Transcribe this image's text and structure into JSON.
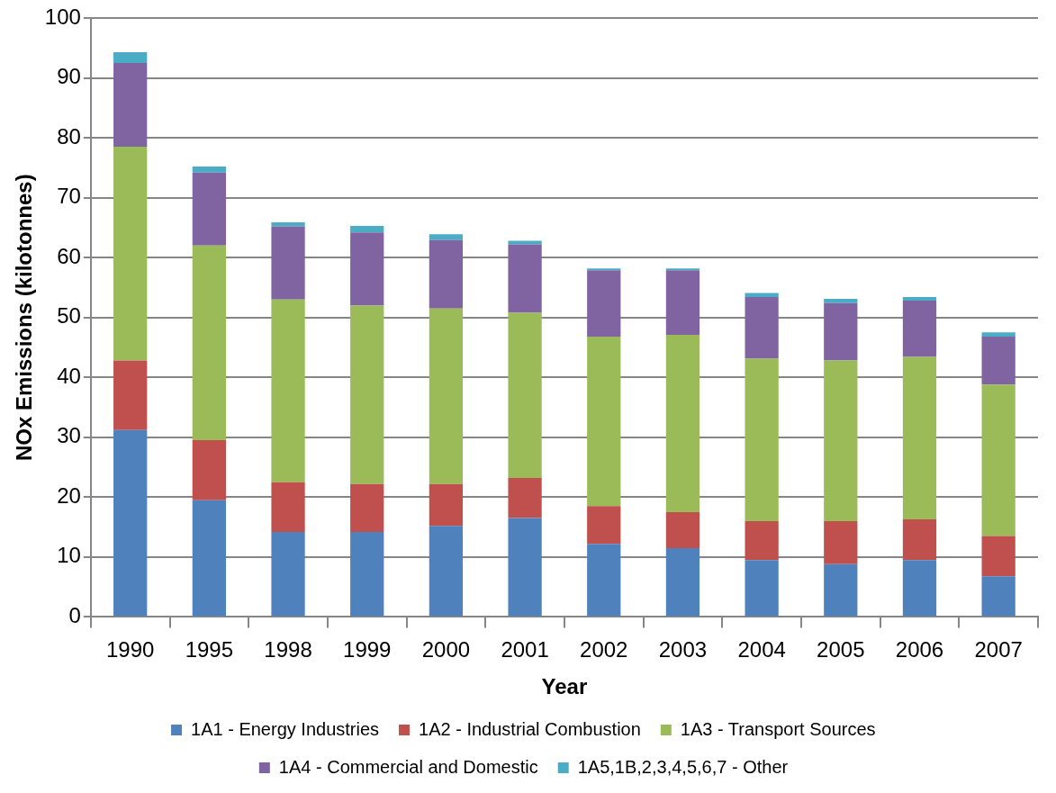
{
  "chart_data": {
    "type": "bar",
    "stacked": true,
    "xlabel": "Year",
    "ylabel": "NOx Emissions (kilotonnes)",
    "categories": [
      "1990",
      "1995",
      "1998",
      "1999",
      "2000",
      "2001",
      "2002",
      "2003",
      "2004",
      "2005",
      "2006",
      "2007"
    ],
    "series": [
      {
        "name": "1A1 - Energy Industries",
        "color": "#4f81bd",
        "values": [
          31.2,
          19.5,
          14.2,
          14.2,
          15.2,
          16.5,
          12.2,
          11.5,
          9.5,
          8.8,
          9.5,
          6.8
        ]
      },
      {
        "name": "1A2 - Industrial Combustion",
        "color": "#c0504d",
        "values": [
          11.6,
          10,
          8.3,
          8,
          7,
          6.7,
          6.3,
          6,
          6.5,
          7.2,
          6.8,
          6.7
        ]
      },
      {
        "name": "1A3 - Transport Sources",
        "color": "#9bbb59",
        "values": [
          35.7,
          32.5,
          30.5,
          29.8,
          29.3,
          27.6,
          28.3,
          29.6,
          27.1,
          26.8,
          27.1,
          25.3
        ]
      },
      {
        "name": "1A4 - Commercial and Domestic",
        "color": "#8064a2",
        "values": [
          14,
          12.2,
          12.2,
          12.2,
          11.4,
          11.4,
          11.1,
          10.8,
          10.3,
          9.6,
          9.4,
          8
        ]
      },
      {
        "name": "1A5,1B,2,3,4,5,6,7 - Other",
        "color": "#4bacc6",
        "values": [
          1.8,
          1,
          0.7,
          1.1,
          1,
          0.6,
          0.3,
          0.3,
          0.7,
          0.7,
          0.6,
          0.7
        ]
      }
    ],
    "ylim": [
      0,
      100
    ],
    "yticks": [
      0,
      10,
      20,
      30,
      40,
      50,
      60,
      70,
      80,
      90,
      100
    ],
    "grid": "y",
    "legend": "bottom"
  }
}
